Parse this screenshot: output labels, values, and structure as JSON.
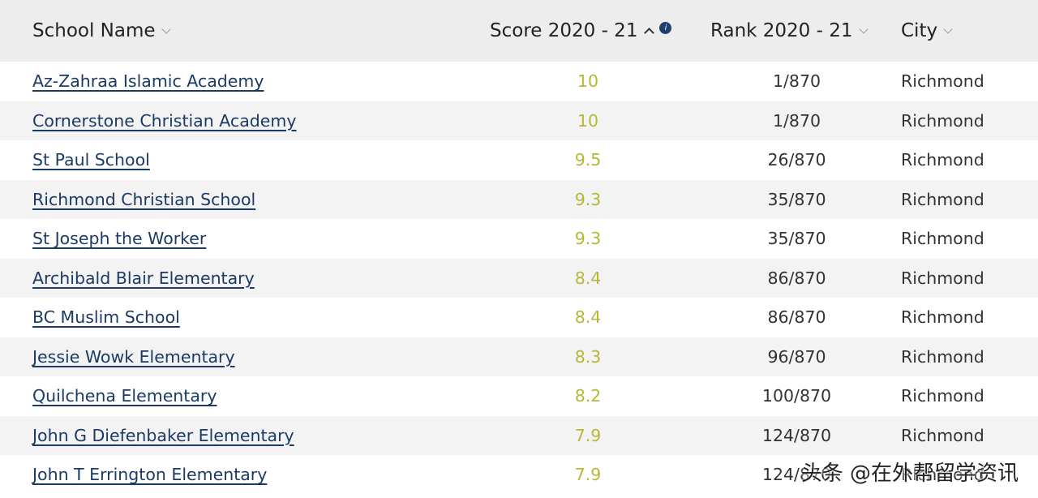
{
  "columns": {
    "name": "School Name",
    "score": "Score 2020 - 21",
    "rank": "Rank 2020 - 21",
    "city": "City"
  },
  "rows": [
    {
      "name": "Az-Zahraa Islamic Academy",
      "score": "10",
      "rank": "1/870",
      "city": "Richmond"
    },
    {
      "name": "Cornerstone Christian Academy",
      "score": "10",
      "rank": "1/870",
      "city": "Richmond"
    },
    {
      "name": "St Paul School",
      "score": "9.5",
      "rank": "26/870",
      "city": "Richmond"
    },
    {
      "name": "Richmond Christian School",
      "score": "9.3",
      "rank": "35/870",
      "city": "Richmond"
    },
    {
      "name": "St Joseph the Worker",
      "score": "9.3",
      "rank": "35/870",
      "city": "Richmond"
    },
    {
      "name": "Archibald Blair Elementary",
      "score": "8.4",
      "rank": "86/870",
      "city": "Richmond"
    },
    {
      "name": "BC Muslim School",
      "score": "8.4",
      "rank": "86/870",
      "city": "Richmond"
    },
    {
      "name": "Jessie Wowk Elementary",
      "score": "8.3",
      "rank": "96/870",
      "city": "Richmond"
    },
    {
      "name": "Quilchena Elementary",
      "score": "8.2",
      "rank": "100/870",
      "city": "Richmond"
    },
    {
      "name": "John G Diefenbaker Elementary",
      "score": "7.9",
      "rank": "124/870",
      "city": "Richmond"
    },
    {
      "name": "John T Errington Elementary",
      "score": "7.9",
      "rank": "124/870",
      "city": "Richmond"
    }
  ],
  "watermark": "头条 @在外帮留学资讯",
  "colors": {
    "link": "#1b3a66",
    "score": "#b3b934",
    "header_bg": "#ededed",
    "row_alt_bg": "#f3f3f3"
  }
}
